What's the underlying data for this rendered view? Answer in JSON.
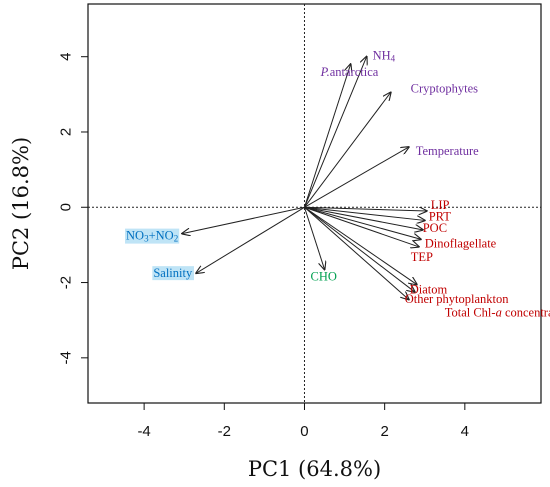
{
  "chart_data": {
    "type": "biplot",
    "title": "",
    "xlabel": "PC1 (64.8%)",
    "ylabel": "PC2 (16.8%)",
    "xlim": [
      -5.4,
      5.9
    ],
    "ylim": [
      -5.2,
      5.4
    ],
    "xticks": [
      -4,
      -2,
      0,
      2,
      4
    ],
    "yticks": [
      -4,
      -2,
      0,
      2,
      4
    ],
    "zero_lines": true,
    "grid": false,
    "colors": {
      "purple": "#7030a0",
      "red": "#c00000",
      "blue": "#0070c0",
      "green": "#00a050",
      "arrow": "#222222",
      "label_bg": "#bfe4f6"
    },
    "vectors": [
      {
        "name": "NH",
        "sub": "4",
        "x": 1.55,
        "y": 4.0,
        "color": "purple",
        "bg": false
      },
      {
        "name": "P.antarctica",
        "x": 1.15,
        "y": 3.8,
        "color": "purple",
        "bg": false,
        "italic_prefix": "P."
      },
      {
        "name": "Cryptophytes",
        "x": 2.15,
        "y": 3.05,
        "color": "purple",
        "bg": false
      },
      {
        "name": "Temperature",
        "x": 2.6,
        "y": 1.6,
        "color": "purple",
        "bg": false
      },
      {
        "name": "LIP",
        "x": 3.05,
        "y": -0.1,
        "color": "red",
        "bg": false
      },
      {
        "name": "PRT",
        "x": 3.0,
        "y": -0.35,
        "color": "red",
        "bg": false
      },
      {
        "name": "POC",
        "x": 2.95,
        "y": -0.6,
        "color": "red",
        "bg": false
      },
      {
        "name": "Dinoflagellate",
        "x": 2.9,
        "y": -0.85,
        "color": "red",
        "bg": false
      },
      {
        "name": "TEP",
        "x": 2.85,
        "y": -1.05,
        "color": "red",
        "bg": false
      },
      {
        "name": "Diatom",
        "x": 2.8,
        "y": -2.05,
        "color": "red",
        "bg": false
      },
      {
        "name": "Other phytoplankton",
        "x": 2.75,
        "y": -2.25,
        "color": "red",
        "bg": false
      },
      {
        "name": "Total Chl-a concentration",
        "x": 2.6,
        "y": -2.45,
        "color": "red",
        "bg": false
      },
      {
        "name": "CHO",
        "x": 0.5,
        "y": -1.65,
        "color": "green",
        "bg": false
      },
      {
        "name": "Salinity",
        "x": -2.7,
        "y": -1.75,
        "color": "blue",
        "bg": true
      },
      {
        "name": "NO3+NO2",
        "x": -3.05,
        "y": -0.7,
        "color": "blue",
        "bg": true
      }
    ]
  }
}
